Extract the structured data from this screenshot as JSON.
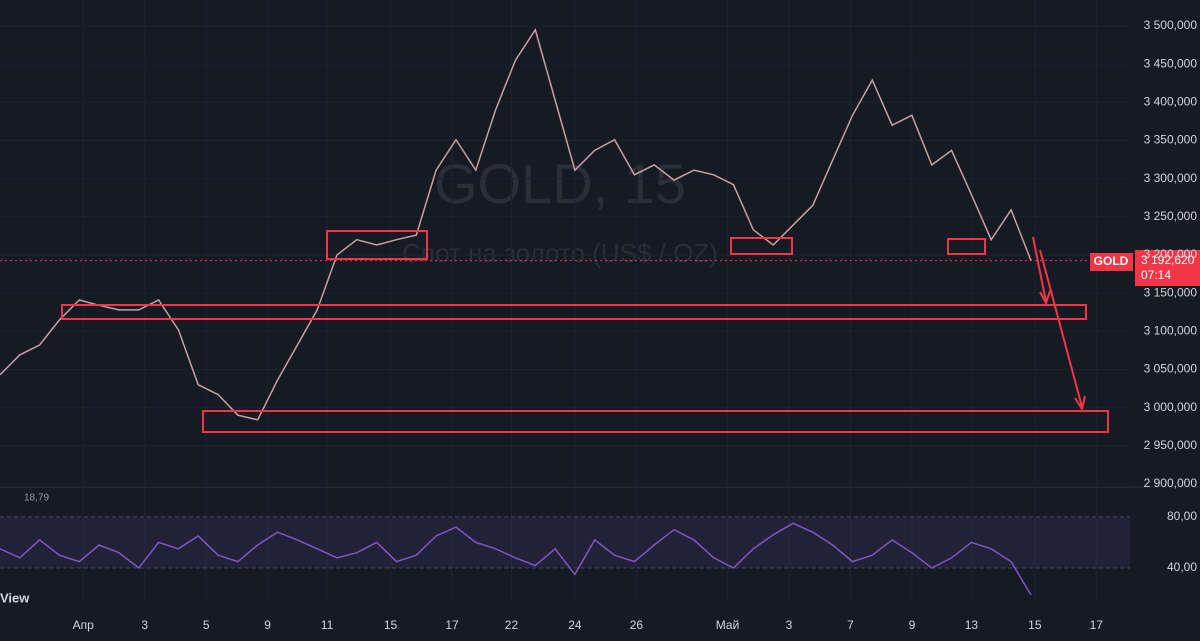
{
  "chart_data": [
    {
      "type": "line",
      "title": "GOLD, 15",
      "subtitle": "Спот на золото (US$ / OZ)",
      "symbol": "GOLD",
      "countdown": "07:14",
      "last_price": {
        "value": 3192.62,
        "label": "3 192,620"
      },
      "xlim": [
        0,
        57
      ],
      "xticks": [
        {
          "value": 4.2,
          "label": "Апр"
        },
        {
          "value": 7.3,
          "label": "3"
        },
        {
          "value": 10.4,
          "label": "5"
        },
        {
          "value": 13.5,
          "label": "9"
        },
        {
          "value": 16.5,
          "label": "11"
        },
        {
          "value": 19.7,
          "label": "15"
        },
        {
          "value": 22.8,
          "label": "17"
        },
        {
          "value": 25.8,
          "label": "22"
        },
        {
          "value": 29,
          "label": "24"
        },
        {
          "value": 32.1,
          "label": "26"
        },
        {
          "value": 36.7,
          "label": "Май"
        },
        {
          "value": 39.8,
          "label": "3"
        },
        {
          "value": 42.9,
          "label": "7"
        },
        {
          "value": 46,
          "label": "9"
        },
        {
          "value": 49,
          "label": "13"
        },
        {
          "value": 52.2,
          "label": "15"
        },
        {
          "value": 55.3,
          "label": "17"
        }
      ],
      "ylim": [
        2896,
        3534
      ],
      "yticks": [
        {
          "value": 2900,
          "label": "2 900,000"
        },
        {
          "value": 2950,
          "label": "2 950,000"
        },
        {
          "value": 3000,
          "label": "3 000,000"
        },
        {
          "value": 3050,
          "label": "3 050,000"
        },
        {
          "value": 3100,
          "label": "3 100,000"
        },
        {
          "value": 3150,
          "label": "3 150,000"
        },
        {
          "value": 3200,
          "label": "3 200,000"
        },
        {
          "value": 3250,
          "label": "3 250,000"
        },
        {
          "value": 3300,
          "label": "3 300,000"
        },
        {
          "value": 3350,
          "label": "3 350,000"
        },
        {
          "value": 3400,
          "label": "3 400,000"
        },
        {
          "value": 3450,
          "label": "3 450,000"
        },
        {
          "value": 3500,
          "label": "3 500,000"
        }
      ],
      "grid": true,
      "series": [
        {
          "name": "GOLD",
          "color": "#c9a0a0",
          "values": [
            3043,
            3069,
            3082,
            3115,
            3141,
            3134,
            3128,
            3128,
            3141,
            3102,
            3030,
            3017,
            2990,
            2984,
            3036,
            3082,
            3128,
            3200,
            3220,
            3213,
            3220,
            3226,
            3311,
            3351,
            3311,
            3390,
            3455,
            3495,
            3403,
            3311,
            3337,
            3351,
            3305,
            3318,
            3298,
            3311,
            3305,
            3292,
            3233,
            3213,
            3239,
            3265,
            3324,
            3383,
            3429,
            3370,
            3383,
            3318,
            3337,
            3279,
            3220,
            3259,
            3193
          ]
        }
      ]
    },
    {
      "type": "line",
      "title": "18,79",
      "footer": "View",
      "xlim": [
        0,
        57
      ],
      "ylim": [
        15,
        101
      ],
      "yticks": [
        {
          "value": 80,
          "label": "80,00"
        },
        {
          "value": 40,
          "label": "40,00"
        }
      ],
      "series": [
        {
          "name": "RSI",
          "color": "#7e57c2",
          "values": [
            55,
            48,
            62,
            50,
            45,
            58,
            52,
            40,
            60,
            55,
            65,
            50,
            45,
            58,
            68,
            62,
            55,
            48,
            52,
            60,
            45,
            50,
            65,
            72,
            60,
            55,
            48,
            42,
            55,
            35,
            62,
            50,
            45,
            58,
            70,
            62,
            48,
            40,
            55,
            66,
            75,
            68,
            58,
            45,
            50,
            62,
            52,
            40,
            48,
            60,
            55,
            45,
            19
          ]
        }
      ]
    }
  ]
}
